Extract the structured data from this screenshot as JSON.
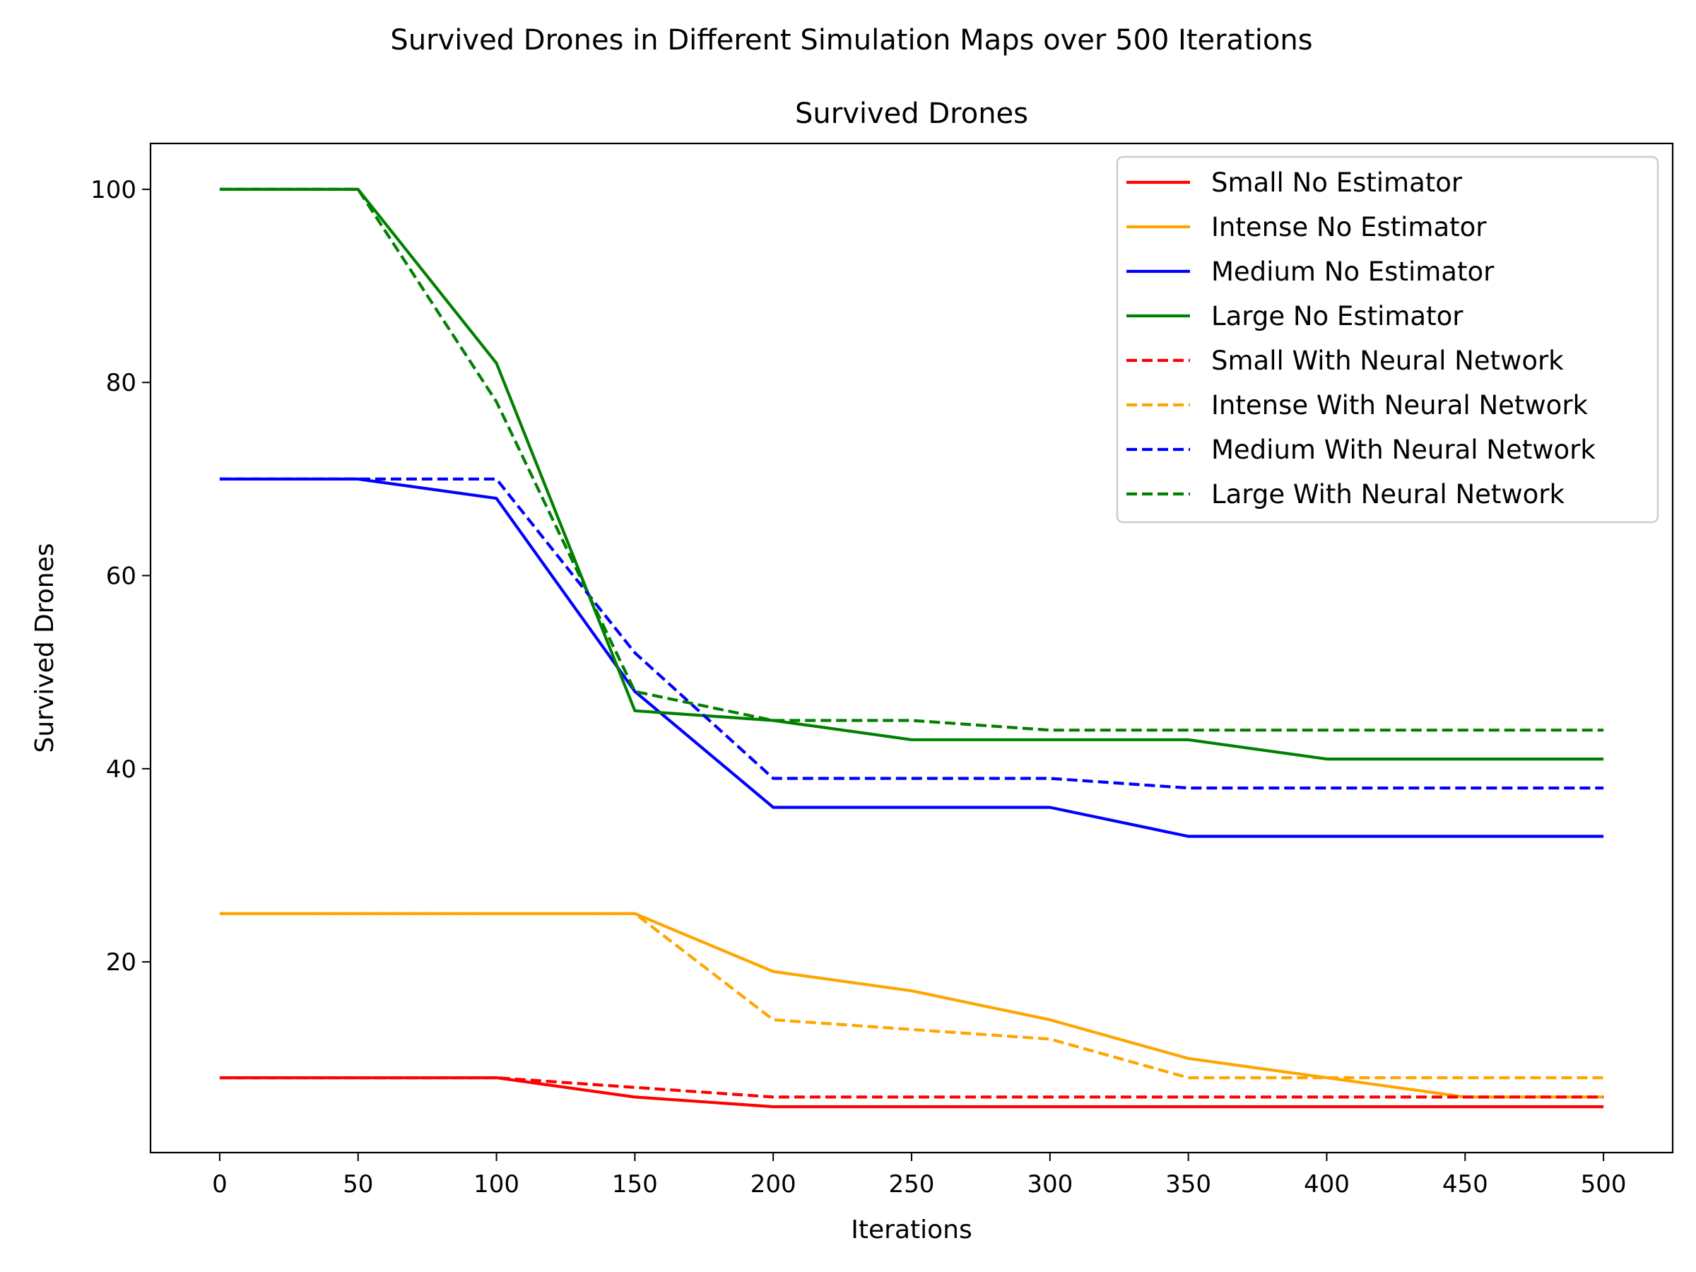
{
  "figure": {
    "suptitle": "Survived Drones in Different Simulation Maps over 500 Iterations"
  },
  "chart_data": {
    "type": "line",
    "title": "Survived Drones",
    "xlabel": "Iterations",
    "ylabel": "Survived Drones",
    "xlim": [
      -25,
      525
    ],
    "ylim": [
      0.25,
      104.75
    ],
    "xticks": [
      0,
      50,
      100,
      150,
      200,
      250,
      300,
      350,
      400,
      450,
      500
    ],
    "yticks": [
      20,
      40,
      60,
      80,
      100
    ],
    "grid": false,
    "legend_position": "top-right",
    "x": [
      0,
      50,
      100,
      150,
      200,
      250,
      300,
      350,
      400,
      450,
      500
    ],
    "series": [
      {
        "name": "Small No Estimator",
        "color": "#ff0000",
        "style": "solid",
        "values": [
          8,
          8,
          8,
          6,
          5,
          5,
          5,
          5,
          5,
          5,
          5
        ]
      },
      {
        "name": "Intense No Estimator",
        "color": "#ffa500",
        "style": "solid",
        "values": [
          25,
          25,
          25,
          25,
          19,
          17,
          14,
          10,
          8,
          6,
          6
        ]
      },
      {
        "name": "Medium No Estimator",
        "color": "#0000ff",
        "style": "solid",
        "values": [
          70,
          70,
          68,
          48,
          36,
          36,
          36,
          33,
          33,
          33,
          33
        ]
      },
      {
        "name": "Large No Estimator",
        "color": "#008000",
        "style": "solid",
        "values": [
          100,
          100,
          82,
          46,
          45,
          43,
          43,
          43,
          41,
          41,
          41
        ]
      },
      {
        "name": "Small With Neural Network",
        "color": "#ff0000",
        "style": "dashed",
        "values": [
          8,
          8,
          8,
          7,
          6,
          6,
          6,
          6,
          6,
          6,
          6
        ]
      },
      {
        "name": "Intense With Neural Network",
        "color": "#ffa500",
        "style": "dashed",
        "values": [
          25,
          25,
          25,
          25,
          14,
          13,
          12,
          8,
          8,
          8,
          8
        ]
      },
      {
        "name": "Medium With Neural Network",
        "color": "#0000ff",
        "style": "dashed",
        "values": [
          70,
          70,
          70,
          52,
          39,
          39,
          39,
          38,
          38,
          38,
          38
        ]
      },
      {
        "name": "Large With Neural Network",
        "color": "#008000",
        "style": "dashed",
        "values": [
          100,
          100,
          78,
          48,
          45,
          45,
          44,
          44,
          44,
          44,
          44
        ]
      }
    ]
  }
}
